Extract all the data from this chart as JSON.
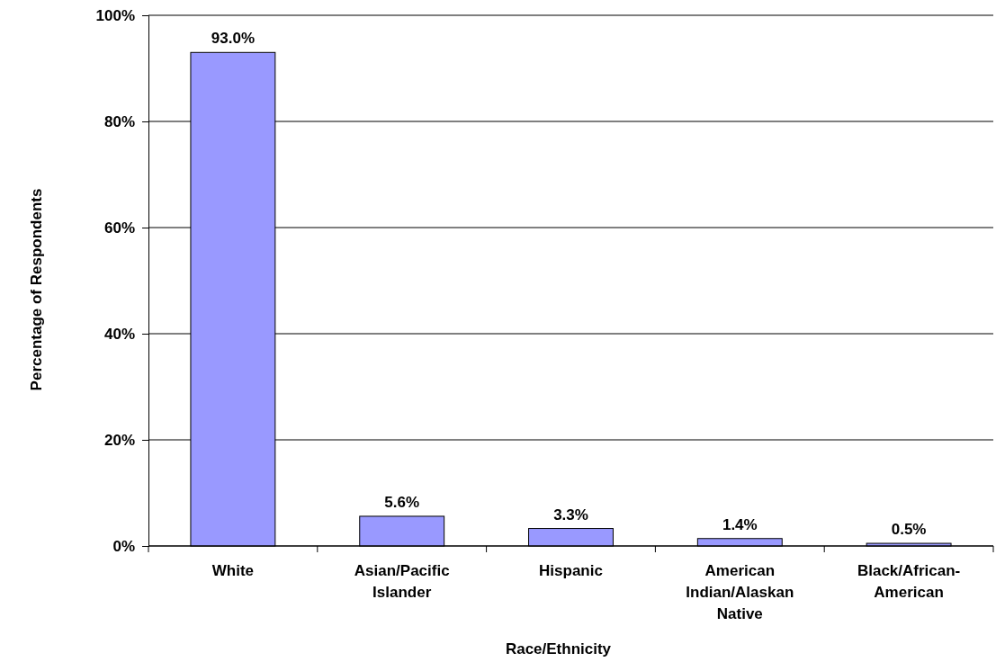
{
  "chart_data": {
    "type": "bar",
    "xlabel": "Race/Ethnicity",
    "ylabel": "Percentage of Respondents",
    "categories": [
      "White",
      "Asian/Pacific Islander",
      "Hispanic",
      "American Indian/Alaskan Native",
      "Black/African-American"
    ],
    "values": [
      93.0,
      5.6,
      3.3,
      1.4,
      0.5
    ],
    "color": "#9999ff",
    "value_labels": [
      "93.0%",
      "5.6%",
      "3.3%",
      "1.4%",
      "0.5%"
    ],
    "ylim": [
      0,
      100
    ],
    "yticks": [
      {
        "value": 0,
        "label": "0%"
      },
      {
        "value": 20,
        "label": "20%"
      },
      {
        "value": 40,
        "label": "40%"
      },
      {
        "value": 60,
        "label": "60%"
      },
      {
        "value": 80,
        "label": "80%"
      },
      {
        "value": 100,
        "label": "100%"
      }
    ],
    "grid": "y"
  }
}
